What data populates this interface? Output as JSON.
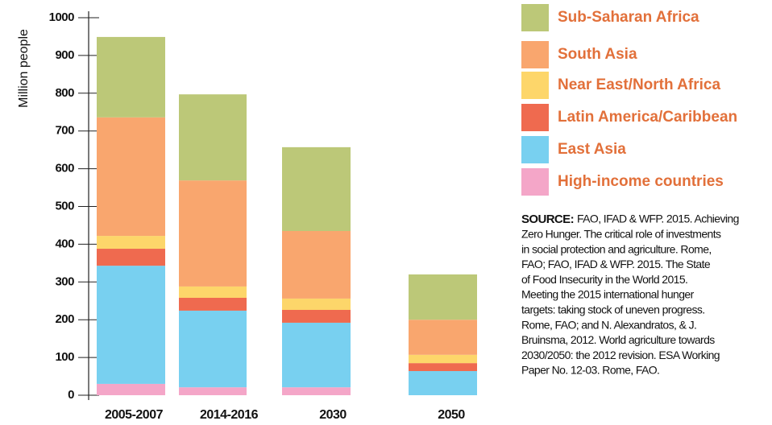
{
  "chart_data": {
    "type": "stacked_bar",
    "y_label": "Million people",
    "categories": [
      "2005-2007",
      "2014-2016",
      "2030",
      "2050"
    ],
    "series": [
      {
        "name": "High-income countries",
        "color": "#f4a6c8",
        "values": [
          30,
          21,
          21,
          0
        ]
      },
      {
        "name": "East Asia",
        "color": "#78d0f0",
        "values": [
          313,
          203,
          171,
          64
        ]
      },
      {
        "name": "Latin America/Caribbean",
        "color": "#ef6a4f",
        "values": [
          45,
          34,
          34,
          21
        ]
      },
      {
        "name": "Near East/North Africa",
        "color": "#fdd66a",
        "values": [
          34,
          30,
          30,
          22
        ]
      },
      {
        "name": "South Asia",
        "color": "#f9a66e",
        "values": [
          314,
          281,
          179,
          93
        ]
      },
      {
        "name": "Sub-Saharan Africa",
        "color": "#bcc878",
        "values": [
          213,
          228,
          222,
          120
        ]
      }
    ],
    "ylim": [
      0,
      1000
    ],
    "yticks": [
      0,
      100,
      200,
      300,
      400,
      500,
      600,
      700,
      800,
      900,
      1000
    ],
    "source_label": "SOURCE:",
    "source_lines": [
      "FAO, IFAD & WFP. 2015. Achieving",
      "Zero Hunger. The critical role of investments",
      "in social protection and agriculture. Rome,",
      "FAO; FAO, IFAD & WFP. 2015. The State",
      "of Food Insecurity in the World 2015.",
      "Meeting the 2015 international hunger",
      "targets: taking stock of uneven progress.",
      "Rome, FAO; and N. Alexandratos, & J.",
      "Bruinsma, 2012. World agriculture towards",
      "2030/2050: the 2012 revision. ESA Working",
      "Paper No. 12-03. Rome, FAO."
    ]
  }
}
